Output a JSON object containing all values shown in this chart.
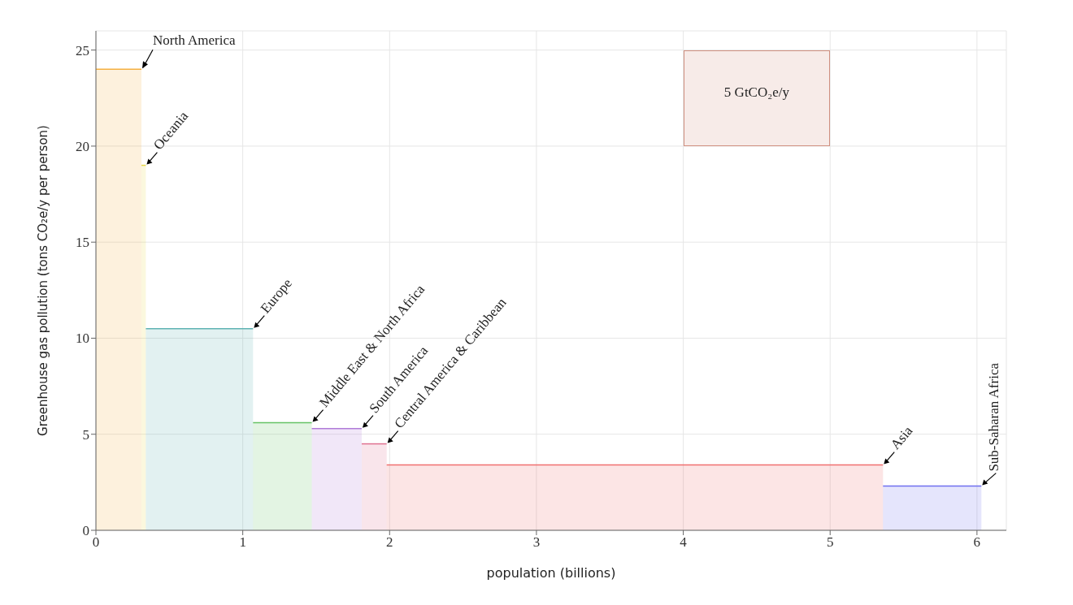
{
  "chart_data": {
    "type": "area",
    "xlabel": "population (billions)",
    "ylabel": "Greenhouse gas pollution (tons CO₂e/y per person)",
    "xlim": [
      0,
      6.2
    ],
    "ylim": [
      0,
      26
    ],
    "xticks": [
      0,
      1,
      2,
      3,
      4,
      5,
      6
    ],
    "yticks": [
      0,
      5,
      10,
      15,
      20,
      25
    ],
    "grid": true,
    "legend": false,
    "series": [
      {
        "name": "North America",
        "color": "#f5b041",
        "x": [
          0,
          0.31
        ],
        "values": [
          24,
          24
        ]
      },
      {
        "name": "Oceania",
        "color": "#e8d84a",
        "x": [
          0.31,
          0.34
        ],
        "values": [
          19,
          19
        ]
      },
      {
        "name": "Europe",
        "color": "#5fb3b3",
        "x": [
          0.34,
          1.07
        ],
        "values": [
          10.5,
          10.5
        ]
      },
      {
        "name": "Middle East & North Africa",
        "color": "#66c266",
        "x": [
          1.07,
          1.47
        ],
        "values": [
          5.6,
          5.6
        ]
      },
      {
        "name": "South America",
        "color": "#b07cd8",
        "x": [
          1.47,
          1.81
        ],
        "values": [
          5.3,
          5.3
        ]
      },
      {
        "name": "Central America & Caribbean",
        "color": "#e07090",
        "x": [
          1.81,
          1.98
        ],
        "values": [
          4.5,
          4.5
        ]
      },
      {
        "name": "Asia",
        "color": "#f07070",
        "x": [
          1.98,
          5.36
        ],
        "values": [
          3.4,
          3.4
        ]
      },
      {
        "name": "Sub-Saharan Africa",
        "color": "#7070f0",
        "x": [
          5.36,
          6.03
        ],
        "values": [
          2.3,
          2.3
        ]
      }
    ],
    "annotations": [
      "5 GtCO₂e/y"
    ]
  }
}
